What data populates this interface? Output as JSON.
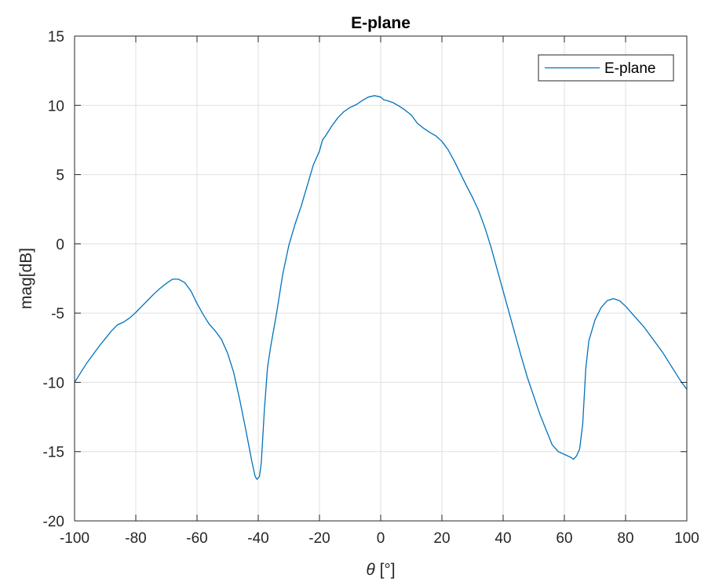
{
  "chart_data": {
    "type": "line",
    "title": "E-plane",
    "xlabel_symbol": "θ",
    "xlabel_unit": "[°]",
    "ylabel": "mag[dB]",
    "xlim": [
      -100,
      100
    ],
    "ylim": [
      -20,
      15
    ],
    "xticks": [
      -100,
      -80,
      -60,
      -40,
      -20,
      0,
      20,
      40,
      60,
      80,
      100
    ],
    "yticks": [
      -20,
      -15,
      -10,
      -5,
      0,
      5,
      10,
      15
    ],
    "grid": true,
    "legend": {
      "placement": "top-right",
      "entries": [
        "E-plane"
      ]
    },
    "series": [
      {
        "name": "E-plane",
        "color": "#0072BD",
        "points": [
          [
            -100,
            -10
          ],
          [
            -98,
            -9.3
          ],
          [
            -96,
            -8.6
          ],
          [
            -94,
            -8.0
          ],
          [
            -92,
            -7.4
          ],
          [
            -90,
            -6.85
          ],
          [
            -88,
            -6.3
          ],
          [
            -86,
            -5.85
          ],
          [
            -84,
            -5.65
          ],
          [
            -82,
            -5.35
          ],
          [
            -80,
            -4.95
          ],
          [
            -78,
            -4.5
          ],
          [
            -76,
            -4.05
          ],
          [
            -74,
            -3.6
          ],
          [
            -72,
            -3.2
          ],
          [
            -70,
            -2.85
          ],
          [
            -68,
            -2.55
          ],
          [
            -66,
            -2.55
          ],
          [
            -64,
            -2.8
          ],
          [
            -62,
            -3.4
          ],
          [
            -60,
            -4.3
          ],
          [
            -58,
            -5.1
          ],
          [
            -56,
            -5.8
          ],
          [
            -54,
            -6.3
          ],
          [
            -52,
            -6.9
          ],
          [
            -50,
            -7.9
          ],
          [
            -48,
            -9.3
          ],
          [
            -46,
            -11.3
          ],
          [
            -44,
            -13.5
          ],
          [
            -42,
            -15.8
          ],
          [
            -41,
            -16.8
          ],
          [
            -40.4,
            -17.0
          ],
          [
            -39.6,
            -16.8
          ],
          [
            -39,
            -15.8
          ],
          [
            -38,
            -12.0
          ],
          [
            -37,
            -9.0
          ],
          [
            -36,
            -7.5
          ],
          [
            -34,
            -5.0
          ],
          [
            -32,
            -2.2
          ],
          [
            -30,
            -0.1
          ],
          [
            -28,
            1.4
          ],
          [
            -26,
            2.7
          ],
          [
            -24,
            4.2
          ],
          [
            -22,
            5.7
          ],
          [
            -20,
            6.7
          ],
          [
            -19,
            7.5
          ],
          [
            -18,
            7.8
          ],
          [
            -16,
            8.5
          ],
          [
            -14,
            9.1
          ],
          [
            -12,
            9.55
          ],
          [
            -10,
            9.85
          ],
          [
            -8,
            10.05
          ],
          [
            -6,
            10.35
          ],
          [
            -4,
            10.6
          ],
          [
            -2,
            10.7
          ],
          [
            0,
            10.6
          ],
          [
            1,
            10.4
          ],
          [
            2,
            10.35
          ],
          [
            4,
            10.2
          ],
          [
            6,
            9.95
          ],
          [
            8,
            9.65
          ],
          [
            10,
            9.3
          ],
          [
            12,
            8.7
          ],
          [
            14,
            8.35
          ],
          [
            16,
            8.05
          ],
          [
            18,
            7.8
          ],
          [
            20,
            7.4
          ],
          [
            22,
            6.8
          ],
          [
            24,
            6.0
          ],
          [
            26,
            5.1
          ],
          [
            28,
            4.2
          ],
          [
            30,
            3.35
          ],
          [
            32,
            2.4
          ],
          [
            34,
            1.2
          ],
          [
            36,
            -0.2
          ],
          [
            38,
            -1.8
          ],
          [
            40,
            -3.4
          ],
          [
            42,
            -5.0
          ],
          [
            44,
            -6.6
          ],
          [
            46,
            -8.2
          ],
          [
            48,
            -9.7
          ],
          [
            50,
            -11.0
          ],
          [
            52,
            -12.3
          ],
          [
            54,
            -13.4
          ],
          [
            56,
            -14.5
          ],
          [
            58,
            -15.0
          ],
          [
            60,
            -15.2
          ],
          [
            62,
            -15.4
          ],
          [
            63,
            -15.55
          ],
          [
            64,
            -15.3
          ],
          [
            65,
            -14.8
          ],
          [
            66,
            -13.0
          ],
          [
            67,
            -9.0
          ],
          [
            68,
            -7.0
          ],
          [
            70,
            -5.5
          ],
          [
            72,
            -4.6
          ],
          [
            74,
            -4.1
          ],
          [
            76,
            -3.95
          ],
          [
            78,
            -4.1
          ],
          [
            80,
            -4.5
          ],
          [
            82,
            -5.0
          ],
          [
            84,
            -5.5
          ],
          [
            86,
            -6.0
          ],
          [
            88,
            -6.6
          ],
          [
            90,
            -7.2
          ],
          [
            92,
            -7.8
          ],
          [
            94,
            -8.5
          ],
          [
            96,
            -9.2
          ],
          [
            98,
            -9.9
          ],
          [
            100,
            -10.5
          ]
        ]
      }
    ]
  }
}
